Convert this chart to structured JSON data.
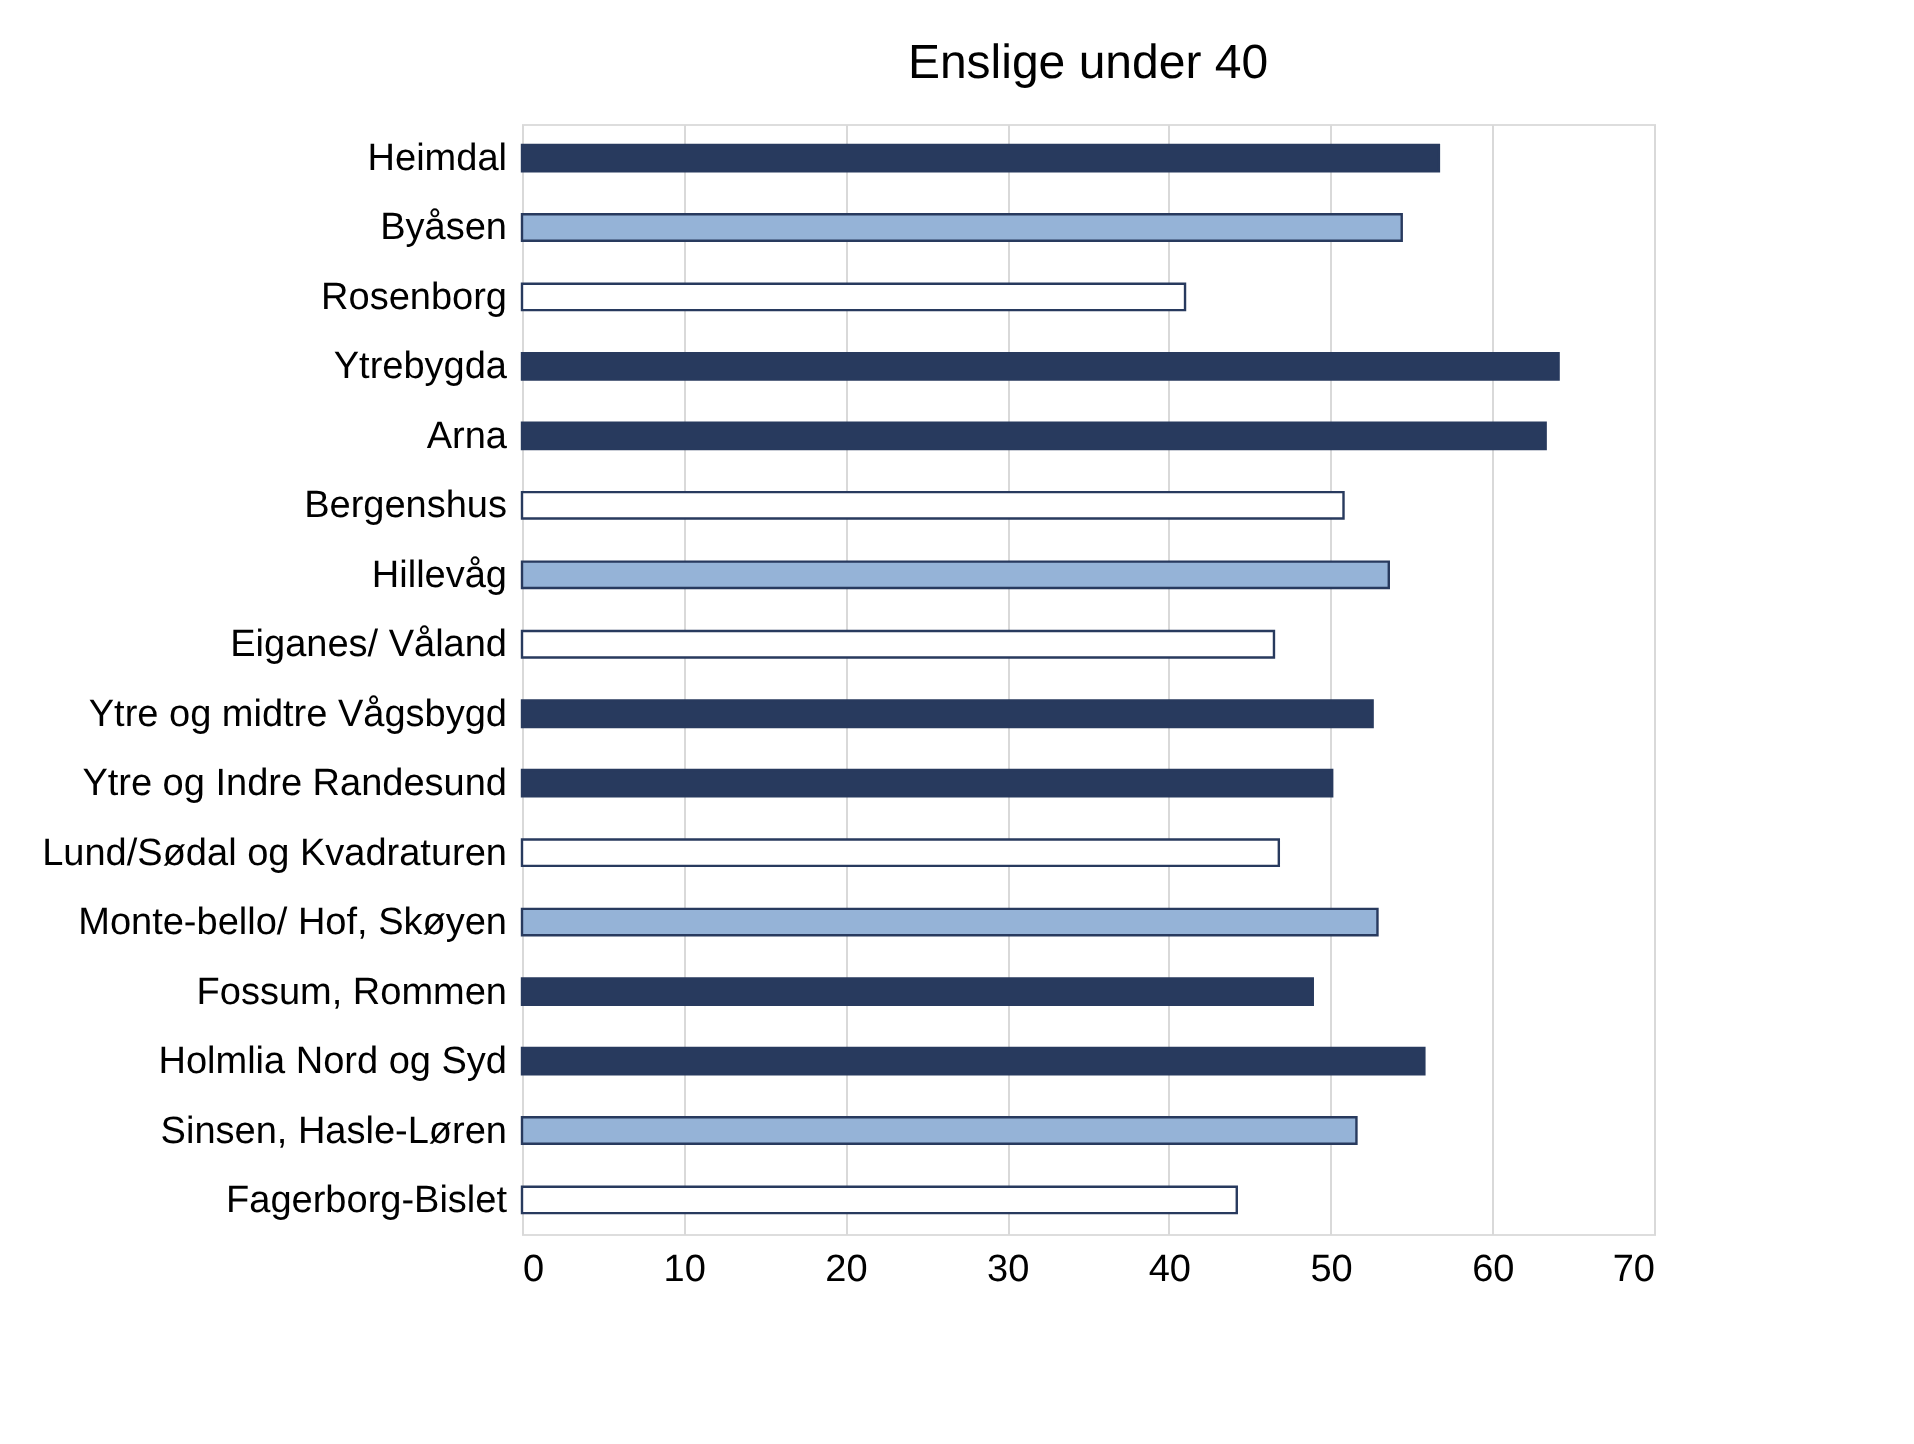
{
  "chart_data": {
    "type": "bar",
    "orientation": "horizontal",
    "title": "Enslige under 40",
    "categories": [
      "Heimdal",
      "Byåsen",
      "Rosenborg",
      "Ytrebygda",
      "Arna",
      "Bergenshus",
      "Hillevåg",
      "Eiganes/ Våland",
      "Ytre og midtre Vågsbygd",
      "Ytre og Indre Randesund",
      "Lund/Sødal og Kvadraturen",
      "Monte-bello/ Hof, Skøyen",
      "Fossum, Rommen",
      "Holmlia Nord og Syd",
      "Sinsen, Hasle-Løren",
      "Fagerborg-Bislet"
    ],
    "values": [
      56.7,
      54.4,
      41.0,
      64.1,
      63.3,
      50.8,
      53.6,
      46.5,
      52.6,
      50.1,
      46.8,
      52.9,
      48.9,
      55.8,
      51.6,
      44.2
    ],
    "colors": [
      "#283a5e",
      "#95b3d7",
      "#ffffff",
      "#283a5e",
      "#283a5e",
      "#ffffff",
      "#95b3d7",
      "#ffffff",
      "#283a5e",
      "#283a5e",
      "#ffffff",
      "#95b3d7",
      "#283a5e",
      "#283a5e",
      "#95b3d7",
      "#ffffff"
    ],
    "xlim": [
      0,
      70
    ],
    "xticks": [
      0,
      10,
      20,
      30,
      40,
      50,
      60,
      70
    ],
    "grid": "x"
  }
}
